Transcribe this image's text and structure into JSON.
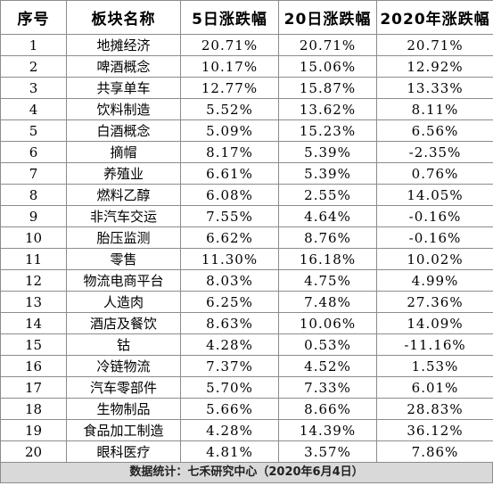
{
  "table": {
    "headers": [
      "序号",
      "板块名称",
      "5日涨跌幅",
      "20日涨跌幅",
      "2020年涨跌幅"
    ],
    "rows": [
      [
        "1",
        "地摊经济",
        "20.71%",
        "20.71%",
        "20.71%"
      ],
      [
        "2",
        "啤酒概念",
        "10.17%",
        "15.06%",
        "12.92%"
      ],
      [
        "3",
        "共享单车",
        "12.77%",
        "15.87%",
        "13.33%"
      ],
      [
        "4",
        "饮料制造",
        "5.52%",
        "13.62%",
        "8.11%"
      ],
      [
        "5",
        "白酒概念",
        "5.09%",
        "15.23%",
        "6.56%"
      ],
      [
        "6",
        "摘帽",
        "8.17%",
        "5.39%",
        "-2.35%"
      ],
      [
        "7",
        "养殖业",
        "6.61%",
        "5.39%",
        "0.76%"
      ],
      [
        "8",
        "燃料乙醇",
        "6.08%",
        "2.55%",
        "14.05%"
      ],
      [
        "9",
        "非汽车交运",
        "7.55%",
        "4.64%",
        "-0.16%"
      ],
      [
        "10",
        "胎压监测",
        "6.62%",
        "8.76%",
        "-0.16%"
      ],
      [
        "11",
        "零售",
        "11.30%",
        "16.18%",
        "10.02%"
      ],
      [
        "12",
        "物流电商平台",
        "8.03%",
        "4.75%",
        "4.99%"
      ],
      [
        "13",
        "人造肉",
        "6.25%",
        "7.48%",
        "27.36%"
      ],
      [
        "14",
        "酒店及餐饮",
        "8.63%",
        "10.06%",
        "14.09%"
      ],
      [
        "15",
        "钴",
        "4.28%",
        "0.53%",
        "-11.16%"
      ],
      [
        "16",
        "冷链物流",
        "7.37%",
        "4.52%",
        "1.53%"
      ],
      [
        "17",
        "汽车零部件",
        "5.70%",
        "7.33%",
        "6.01%"
      ],
      [
        "18",
        "生物制品",
        "5.66%",
        "8.66%",
        "28.83%"
      ],
      [
        "19",
        "食品加工制造",
        "4.28%",
        "14.39%",
        "36.12%"
      ],
      [
        "20",
        "眼科医疗",
        "4.81%",
        "3.57%",
        "7.86%"
      ]
    ]
  },
  "footer": {
    "text": "数据统计：七禾研究中心（2020年6月4日）"
  }
}
